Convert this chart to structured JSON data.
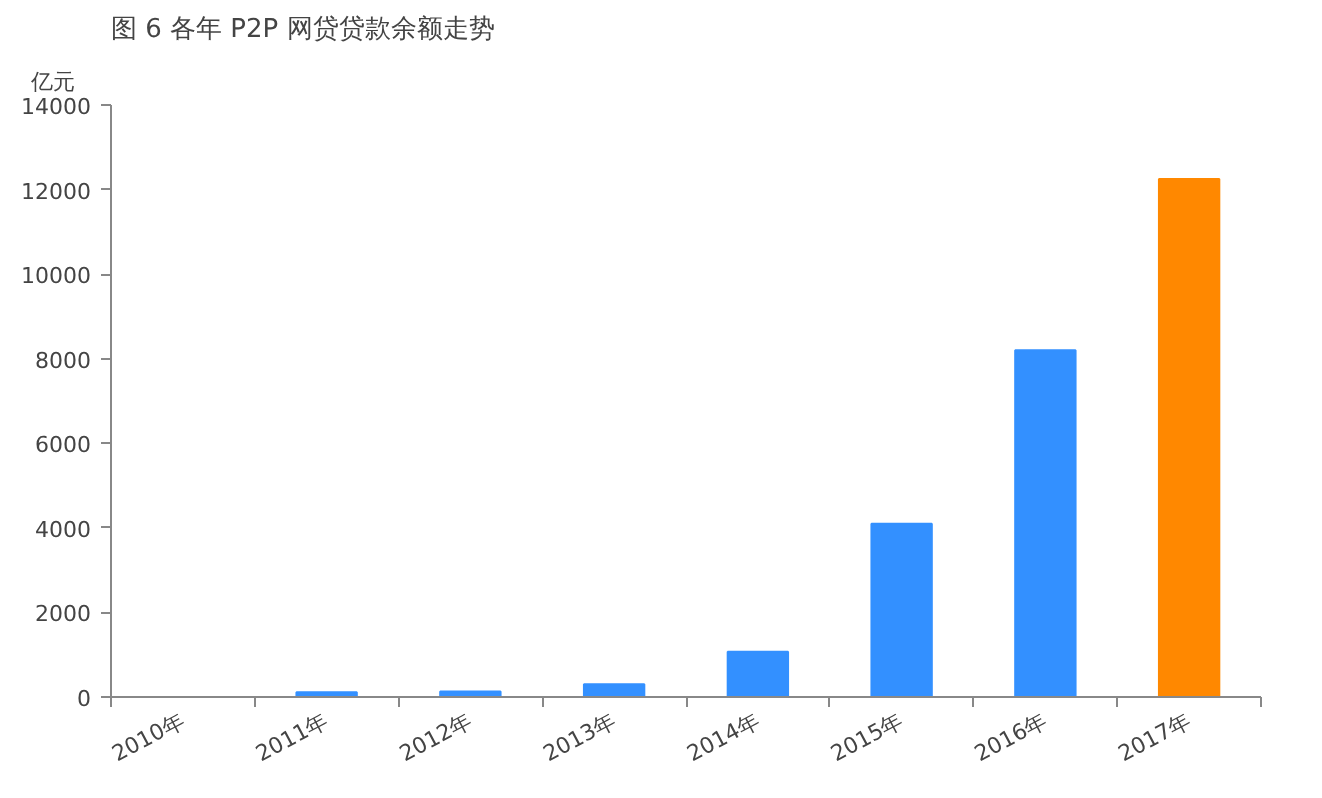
{
  "chart_data": {
    "type": "bar",
    "title": "图 6   各年 P2P 网贷贷款余额走势",
    "ylabel": "亿元",
    "categories": [
      "2010年",
      "2011年",
      "2012年",
      "2013年",
      "2014年",
      "2015年",
      "2016年",
      "2017年"
    ],
    "values": [
      null,
      110,
      130,
      300,
      1070,
      4100,
      8200,
      12250
    ],
    "colors": [
      "#3390ff",
      "#3390ff",
      "#3390ff",
      "#3390ff",
      "#3390ff",
      "#3390ff",
      "#3390ff",
      "#ff8800"
    ],
    "ylim": [
      0,
      14000
    ],
    "yticks": [
      0,
      2000,
      4000,
      6000,
      8000,
      10000,
      12000,
      14000
    ],
    "grid": false
  }
}
